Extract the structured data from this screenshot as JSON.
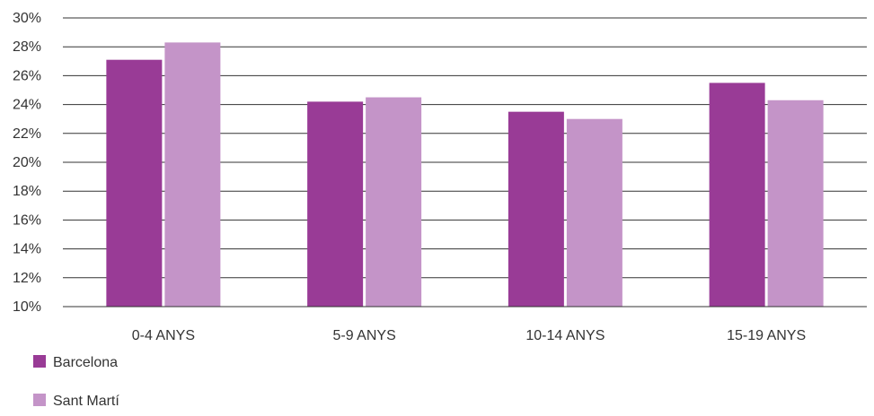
{
  "chart_data": {
    "type": "bar",
    "categories": [
      "0-4 ANYS",
      "5-9 ANYS",
      "10-14 ANYS",
      "15-19 ANYS"
    ],
    "series": [
      {
        "name": "Barcelona",
        "values": [
          27.1,
          24.2,
          23.5,
          25.5
        ],
        "color": "#993b96"
      },
      {
        "name": "Sant Martí",
        "values": [
          28.3,
          24.5,
          23.0,
          24.3
        ],
        "color": "#c494c8"
      }
    ],
    "y_ticks": [
      "10%",
      "12%",
      "14%",
      "16%",
      "18%",
      "20%",
      "22%",
      "24%",
      "26%",
      "28%",
      "30%"
    ],
    "ylim": [
      10,
      30
    ],
    "y_unit": "%",
    "grid": true,
    "grid_color": "#333333",
    "legend_position": "bottom-left",
    "title": "",
    "xlabel": "",
    "ylabel": ""
  }
}
